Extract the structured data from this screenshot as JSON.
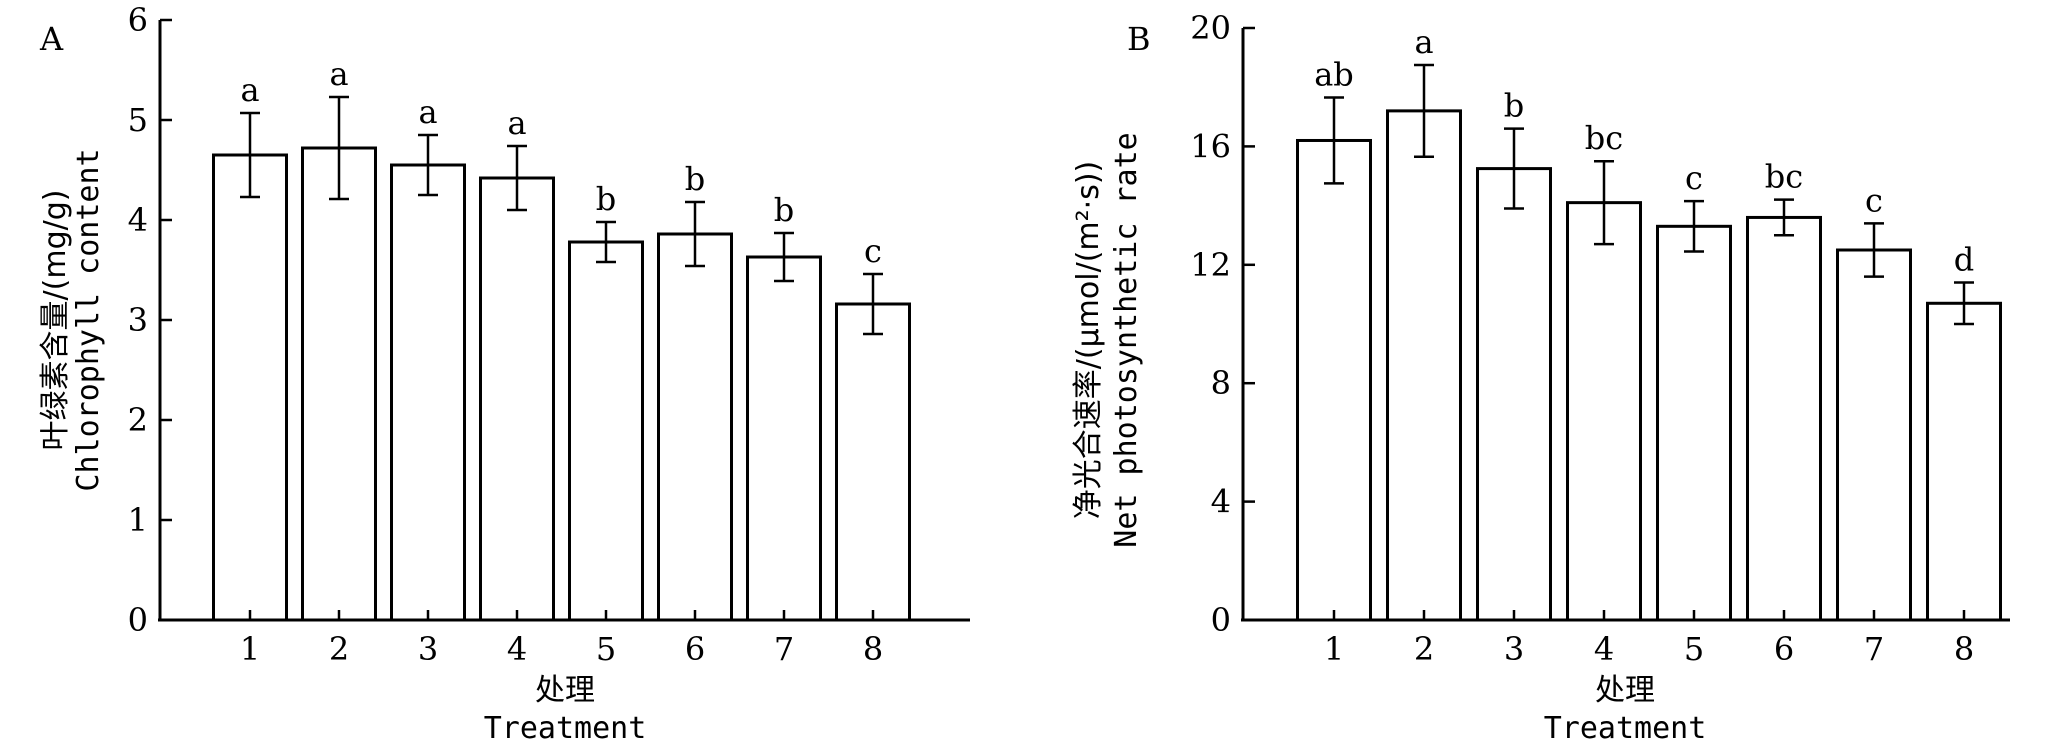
{
  "chart_data": [
    {
      "panel": "A",
      "type": "bar",
      "categories": [
        "1",
        "2",
        "3",
        "4",
        "5",
        "6",
        "7",
        "8"
      ],
      "values": [
        4.65,
        4.72,
        4.55,
        4.42,
        3.78,
        3.86,
        3.63,
        3.16
      ],
      "errors": [
        0.42,
        0.51,
        0.3,
        0.32,
        0.2,
        0.32,
        0.24,
        0.3
      ],
      "significance": [
        "a",
        "a",
        "a",
        "a",
        "b",
        "b",
        "b",
        "c"
      ],
      "ylim": [
        0,
        6
      ],
      "yticks": [
        "0",
        "1",
        "2",
        "3",
        "4",
        "5",
        "6"
      ],
      "ylabel_cn": "叶绿素含量/(mg/g)",
      "ylabel_en": "Chlorophyll content",
      "xlabel_cn": "处理",
      "xlabel_en": "Treatment"
    },
    {
      "panel": "B",
      "type": "bar",
      "categories": [
        "1",
        "2",
        "3",
        "4",
        "5",
        "6",
        "7",
        "8"
      ],
      "values": [
        16.2,
        17.2,
        15.25,
        14.1,
        13.3,
        13.6,
        12.5,
        10.7
      ],
      "errors": [
        1.45,
        1.55,
        1.35,
        1.4,
        0.85,
        0.6,
        0.9,
        0.7
      ],
      "significance": [
        "ab",
        "a",
        "b",
        "bc",
        "c",
        "bc",
        "c",
        "d"
      ],
      "ylim": [
        0,
        20
      ],
      "yticks": [
        "0",
        "4",
        "8",
        "12",
        "16",
        "20"
      ],
      "ylabel_cn": "净光合速率/(μmol/(m²·s))",
      "ylabel_en": "Net photosynthetic rate",
      "xlabel_cn": "处理",
      "xlabel_en": "Treatment"
    }
  ]
}
